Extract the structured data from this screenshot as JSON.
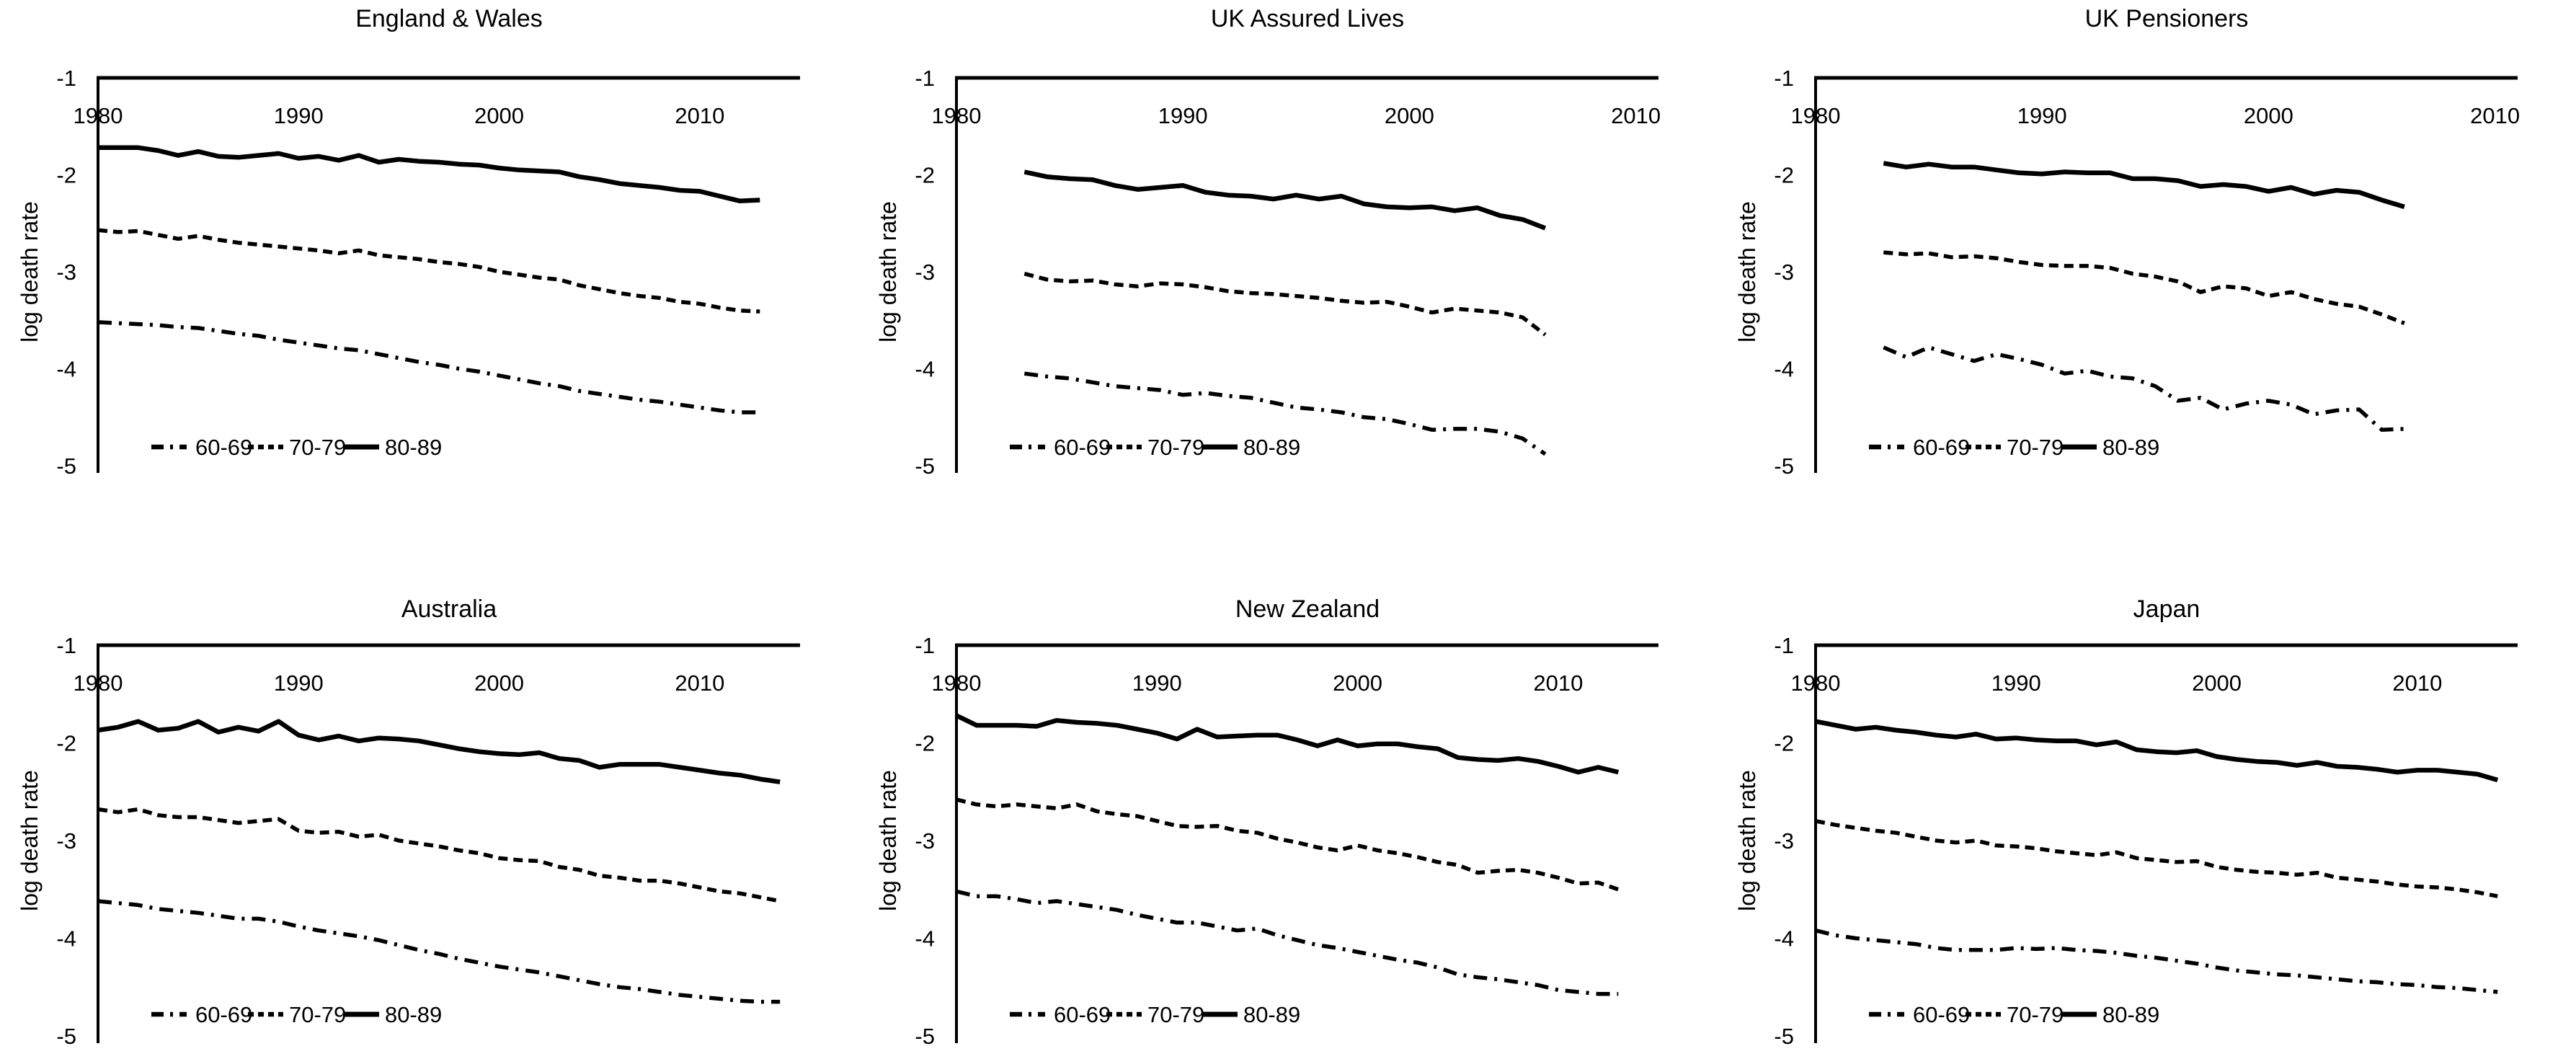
{
  "figure": {
    "background_color": "#ffffff",
    "line_color": "#000000",
    "y_axis_title": "log death rate"
  },
  "legend": {
    "position": "bottom-inside",
    "items": [
      {
        "label": "60-69",
        "style": "dash-dot"
      },
      {
        "label": "70-79",
        "style": "dashed"
      },
      {
        "label": "80-89",
        "style": "solid"
      }
    ]
  },
  "chart_data": [
    {
      "type": "line",
      "title": "England & Wales",
      "xlabel": "",
      "ylabel": "log death rate",
      "x_ticks": [
        1980,
        1990,
        2000,
        2010
      ],
      "y_ticks": [
        -1,
        -2,
        -3,
        -4,
        -5
      ],
      "ylim": [
        -5,
        -1
      ],
      "x_range": [
        1980,
        2015
      ],
      "grid": false,
      "x_start": 1980,
      "series": [
        {
          "name": "60-69",
          "line_style": "dash-dot",
          "values": [
            -3.52,
            -3.53,
            -3.54,
            -3.55,
            -3.57,
            -3.58,
            -3.61,
            -3.64,
            -3.66,
            -3.7,
            -3.73,
            -3.76,
            -3.79,
            -3.81,
            -3.85,
            -3.89,
            -3.93,
            -3.96,
            -4.0,
            -4.03,
            -4.07,
            -4.11,
            -4.15,
            -4.18,
            -4.23,
            -4.26,
            -4.29,
            -4.32,
            -4.34,
            -4.37,
            -4.4,
            -4.43,
            -4.45,
            -4.45
          ]
        },
        {
          "name": "70-79",
          "line_style": "dashed",
          "values": [
            -2.57,
            -2.59,
            -2.58,
            -2.62,
            -2.66,
            -2.63,
            -2.67,
            -2.7,
            -2.72,
            -2.74,
            -2.76,
            -2.78,
            -2.81,
            -2.78,
            -2.83,
            -2.85,
            -2.87,
            -2.9,
            -2.92,
            -2.95,
            -3.0,
            -3.03,
            -3.06,
            -3.08,
            -3.14,
            -3.18,
            -3.22,
            -3.25,
            -3.27,
            -3.31,
            -3.33,
            -3.37,
            -3.4,
            -3.41
          ]
        },
        {
          "name": "80-89",
          "line_style": "solid",
          "values": [
            -1.72,
            -1.72,
            -1.72,
            -1.75,
            -1.8,
            -1.76,
            -1.81,
            -1.82,
            -1.8,
            -1.78,
            -1.83,
            -1.81,
            -1.85,
            -1.8,
            -1.87,
            -1.84,
            -1.86,
            -1.87,
            -1.89,
            -1.9,
            -1.93,
            -1.95,
            -1.96,
            -1.97,
            -2.02,
            -2.05,
            -2.09,
            -2.11,
            -2.13,
            -2.16,
            -2.17,
            -2.22,
            -2.27,
            -2.26
          ]
        }
      ]
    },
    {
      "type": "line",
      "title": "UK Assured Lives",
      "xlabel": "",
      "ylabel": "log death rate",
      "x_ticks": [
        1980,
        1990,
        2000,
        2010
      ],
      "y_ticks": [
        -1,
        -2,
        -3,
        -4,
        -5
      ],
      "ylim": [
        -5,
        -1
      ],
      "x_range": [
        1980,
        2011
      ],
      "grid": false,
      "x_start": 1983,
      "series": [
        {
          "name": "60-69",
          "line_style": "dash-dot",
          "values": [
            -4.05,
            -4.08,
            -4.1,
            -4.14,
            -4.18,
            -4.2,
            -4.22,
            -4.27,
            -4.25,
            -4.28,
            -4.3,
            -4.35,
            -4.4,
            -4.42,
            -4.45,
            -4.5,
            -4.52,
            -4.57,
            -4.63,
            -4.62,
            -4.62,
            -4.65,
            -4.72,
            -4.88
          ]
        },
        {
          "name": "70-79",
          "line_style": "dashed",
          "values": [
            -3.02,
            -3.08,
            -3.1,
            -3.09,
            -3.13,
            -3.15,
            -3.12,
            -3.13,
            -3.16,
            -3.2,
            -3.22,
            -3.23,
            -3.25,
            -3.27,
            -3.3,
            -3.32,
            -3.31,
            -3.36,
            -3.42,
            -3.38,
            -3.4,
            -3.42,
            -3.47,
            -3.65
          ]
        },
        {
          "name": "80-89",
          "line_style": "solid",
          "values": [
            -1.97,
            -2.02,
            -2.04,
            -2.05,
            -2.11,
            -2.15,
            -2.13,
            -2.11,
            -2.18,
            -2.21,
            -2.22,
            -2.25,
            -2.21,
            -2.25,
            -2.22,
            -2.3,
            -2.33,
            -2.34,
            -2.33,
            -2.37,
            -2.34,
            -2.42,
            -2.46,
            -2.55
          ]
        }
      ]
    },
    {
      "type": "line",
      "title": "UK Pensioners",
      "xlabel": "",
      "ylabel": "log death rate",
      "x_ticks": [
        1980,
        1990,
        2000,
        2010
      ],
      "y_ticks": [
        -1,
        -2,
        -3,
        -4,
        -5
      ],
      "ylim": [
        -5,
        -1
      ],
      "x_range": [
        1980,
        2011
      ],
      "grid": false,
      "x_start": 1983,
      "series": [
        {
          "name": "60-69",
          "line_style": "dash-dot",
          "values": [
            -3.78,
            -3.88,
            -3.78,
            -3.85,
            -3.92,
            -3.85,
            -3.9,
            -3.96,
            -4.05,
            -4.02,
            -4.08,
            -4.1,
            -4.18,
            -4.33,
            -4.3,
            -4.42,
            -4.36,
            -4.33,
            -4.37,
            -4.47,
            -4.43,
            -4.42,
            -4.63,
            -4.62
          ]
        },
        {
          "name": "70-79",
          "line_style": "dashed",
          "values": [
            -2.8,
            -2.82,
            -2.81,
            -2.85,
            -2.84,
            -2.86,
            -2.9,
            -2.93,
            -2.94,
            -2.94,
            -2.96,
            -3.02,
            -3.05,
            -3.1,
            -3.21,
            -3.15,
            -3.17,
            -3.25,
            -3.21,
            -3.28,
            -3.33,
            -3.36,
            -3.44,
            -3.53
          ]
        },
        {
          "name": "80-89",
          "line_style": "solid",
          "values": [
            -1.88,
            -1.92,
            -1.89,
            -1.92,
            -1.92,
            -1.95,
            -1.98,
            -1.99,
            -1.97,
            -1.98,
            -1.98,
            -2.04,
            -2.04,
            -2.06,
            -2.12,
            -2.1,
            -2.12,
            -2.17,
            -2.13,
            -2.2,
            -2.16,
            -2.18,
            -2.26,
            -2.33
          ]
        }
      ]
    },
    {
      "type": "line",
      "title": "Australia",
      "xlabel": "",
      "ylabel": "log death rate",
      "x_ticks": [
        1980,
        1990,
        2000,
        2010
      ],
      "y_ticks": [
        -1,
        -2,
        -3,
        -4,
        -5
      ],
      "ylim": [
        -5,
        -1
      ],
      "x_range": [
        1980,
        2015
      ],
      "grid": false,
      "x_start": 1980,
      "series": [
        {
          "name": "60-69",
          "line_style": "dash-dot",
          "values": [
            -3.62,
            -3.64,
            -3.66,
            -3.7,
            -3.72,
            -3.74,
            -3.77,
            -3.8,
            -3.8,
            -3.83,
            -3.88,
            -3.92,
            -3.95,
            -3.98,
            -4.02,
            -4.07,
            -4.12,
            -4.16,
            -4.21,
            -4.25,
            -4.29,
            -4.32,
            -4.35,
            -4.39,
            -4.43,
            -4.47,
            -4.5,
            -4.52,
            -4.55,
            -4.58,
            -4.6,
            -4.62,
            -4.64,
            -4.65,
            -4.65
          ]
        },
        {
          "name": "70-79",
          "line_style": "dashed",
          "values": [
            -2.68,
            -2.71,
            -2.68,
            -2.74,
            -2.76,
            -2.76,
            -2.79,
            -2.82,
            -2.8,
            -2.78,
            -2.9,
            -2.92,
            -2.91,
            -2.96,
            -2.94,
            -3.0,
            -3.03,
            -3.06,
            -3.1,
            -3.13,
            -3.18,
            -3.2,
            -3.21,
            -3.27,
            -3.3,
            -3.36,
            -3.38,
            -3.41,
            -3.41,
            -3.44,
            -3.48,
            -3.52,
            -3.54,
            -3.58,
            -3.62
          ]
        },
        {
          "name": "80-89",
          "line_style": "solid",
          "values": [
            -1.87,
            -1.84,
            -1.78,
            -1.87,
            -1.85,
            -1.78,
            -1.89,
            -1.84,
            -1.88,
            -1.78,
            -1.92,
            -1.97,
            -1.93,
            -1.98,
            -1.95,
            -1.96,
            -1.98,
            -2.02,
            -2.06,
            -2.09,
            -2.11,
            -2.12,
            -2.1,
            -2.16,
            -2.18,
            -2.25,
            -2.22,
            -2.22,
            -2.22,
            -2.25,
            -2.28,
            -2.31,
            -2.33,
            -2.37,
            -2.4
          ]
        }
      ]
    },
    {
      "type": "line",
      "title": "New Zealand",
      "xlabel": "",
      "ylabel": "log death rate",
      "x_ticks": [
        1980,
        1990,
        2000,
        2010
      ],
      "y_ticks": [
        -1,
        -2,
        -3,
        -4,
        -5
      ],
      "ylim": [
        -5,
        -1
      ],
      "x_range": [
        1980,
        2015
      ],
      "grid": false,
      "x_start": 1980,
      "series": [
        {
          "name": "60-69",
          "line_style": "dash-dot",
          "values": [
            -3.52,
            -3.57,
            -3.57,
            -3.6,
            -3.64,
            -3.62,
            -3.65,
            -3.68,
            -3.71,
            -3.76,
            -3.8,
            -3.84,
            -3.84,
            -3.88,
            -3.92,
            -3.9,
            -3.97,
            -4.02,
            -4.07,
            -4.1,
            -4.14,
            -4.18,
            -4.22,
            -4.25,
            -4.3,
            -4.37,
            -4.4,
            -4.42,
            -4.45,
            -4.48,
            -4.53,
            -4.55,
            -4.57,
            -4.57
          ]
        },
        {
          "name": "70-79",
          "line_style": "dashed",
          "values": [
            -2.58,
            -2.63,
            -2.65,
            -2.63,
            -2.65,
            -2.67,
            -2.63,
            -2.7,
            -2.73,
            -2.75,
            -2.8,
            -2.85,
            -2.86,
            -2.85,
            -2.9,
            -2.92,
            -2.98,
            -3.02,
            -3.07,
            -3.1,
            -3.05,
            -3.1,
            -3.13,
            -3.17,
            -3.22,
            -3.25,
            -3.33,
            -3.31,
            -3.3,
            -3.33,
            -3.38,
            -3.44,
            -3.43,
            -3.5
          ]
        },
        {
          "name": "80-89",
          "line_style": "solid",
          "values": [
            -1.72,
            -1.82,
            -1.82,
            -1.82,
            -1.83,
            -1.77,
            -1.79,
            -1.8,
            -1.82,
            -1.86,
            -1.9,
            -1.96,
            -1.86,
            -1.94,
            -1.93,
            -1.92,
            -1.92,
            -1.97,
            -2.03,
            -1.97,
            -2.03,
            -2.01,
            -2.01,
            -2.04,
            -2.06,
            -2.15,
            -2.17,
            -2.18,
            -2.16,
            -2.19,
            -2.24,
            -2.3,
            -2.25,
            -2.3
          ]
        }
      ]
    },
    {
      "type": "line",
      "title": "Japan",
      "xlabel": "",
      "ylabel": "log death rate",
      "x_ticks": [
        1980,
        1990,
        2000,
        2010
      ],
      "y_ticks": [
        -1,
        -2,
        -3,
        -4,
        -5
      ],
      "ylim": [
        -5,
        -1
      ],
      "x_range": [
        1980,
        2015
      ],
      "grid": false,
      "x_start": 1980,
      "series": [
        {
          "name": "60-69",
          "line_style": "dash-dot",
          "values": [
            -3.92,
            -3.97,
            -4.0,
            -4.02,
            -4.04,
            -4.06,
            -4.1,
            -4.12,
            -4.12,
            -4.12,
            -4.1,
            -4.11,
            -4.1,
            -4.12,
            -4.13,
            -4.15,
            -4.18,
            -4.2,
            -4.23,
            -4.26,
            -4.3,
            -4.33,
            -4.35,
            -4.37,
            -4.38,
            -4.4,
            -4.42,
            -4.44,
            -4.45,
            -4.47,
            -4.48,
            -4.5,
            -4.51,
            -4.53,
            -4.55
          ]
        },
        {
          "name": "70-79",
          "line_style": "dashed",
          "values": [
            -2.8,
            -2.84,
            -2.87,
            -2.9,
            -2.92,
            -2.96,
            -3.0,
            -3.02,
            -3.0,
            -3.05,
            -3.06,
            -3.08,
            -3.11,
            -3.13,
            -3.15,
            -3.12,
            -3.18,
            -3.2,
            -3.22,
            -3.21,
            -3.27,
            -3.3,
            -3.32,
            -3.33,
            -3.35,
            -3.33,
            -3.38,
            -3.4,
            -3.42,
            -3.45,
            -3.47,
            -3.48,
            -3.5,
            -3.53,
            -3.57
          ]
        },
        {
          "name": "80-89",
          "line_style": "solid",
          "values": [
            -1.78,
            -1.82,
            -1.86,
            -1.84,
            -1.87,
            -1.89,
            -1.92,
            -1.94,
            -1.91,
            -1.96,
            -1.95,
            -1.97,
            -1.98,
            -1.98,
            -2.02,
            -1.99,
            -2.07,
            -2.09,
            -2.1,
            -2.08,
            -2.14,
            -2.17,
            -2.19,
            -2.2,
            -2.23,
            -2.2,
            -2.24,
            -2.25,
            -2.27,
            -2.3,
            -2.28,
            -2.28,
            -2.3,
            -2.32,
            -2.38
          ]
        }
      ]
    }
  ]
}
